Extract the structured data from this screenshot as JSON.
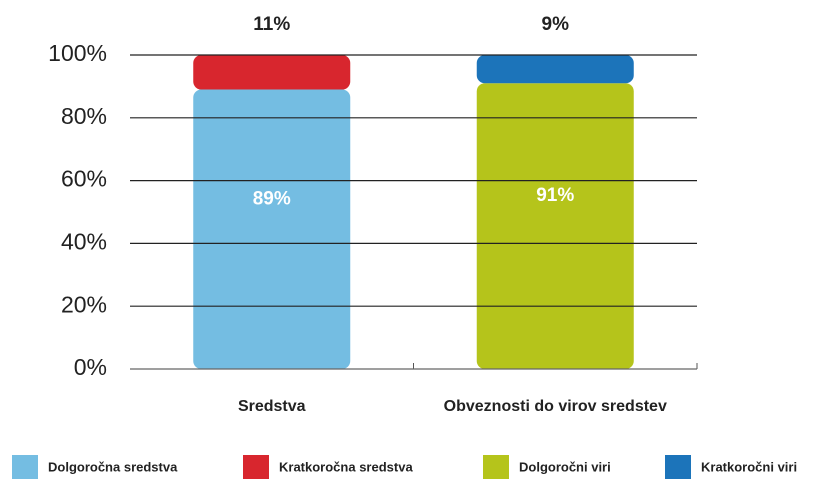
{
  "chart_data": {
    "type": "stacked_bar",
    "categories": [
      "Sredstva",
      "Obveznosti do virov sredstev"
    ],
    "series": [
      {
        "name": "Dolgoročna sredstva",
        "color": "#74bde2",
        "values": [
          89,
          null
        ],
        "value_labels": [
          "89%",
          null
        ]
      },
      {
        "name": "Kratkoročna sredstva",
        "color": "#d8262e",
        "values": [
          11,
          null
        ],
        "value_labels": [
          "11%",
          null
        ]
      },
      {
        "name": "Dolgoročni viri",
        "color": "#b5c41b",
        "values": [
          null,
          91
        ],
        "value_labels": [
          null,
          "91%"
        ]
      },
      {
        "name": "Kratkoročni viri",
        "color": "#1c74ba",
        "values": [
          null,
          9
        ],
        "value_labels": [
          null,
          "9%"
        ]
      }
    ],
    "ylim": [
      0,
      100
    ],
    "yticks": [
      {
        "value": 0,
        "label": "0%"
      },
      {
        "value": 20,
        "label": "20%"
      },
      {
        "value": 40,
        "label": "40%"
      },
      {
        "value": 60,
        "label": "60%"
      },
      {
        "value": 80,
        "label": "80%"
      },
      {
        "value": 100,
        "label": "100%"
      }
    ],
    "grid": true,
    "legend": "bottom"
  }
}
